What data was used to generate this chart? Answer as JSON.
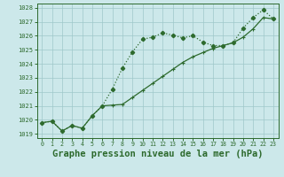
{
  "title": "Graphe pression niveau de la mer (hPa)",
  "xlim": [
    -0.5,
    23.5
  ],
  "ylim": [
    1018.7,
    1028.3
  ],
  "yticks": [
    1019,
    1020,
    1021,
    1022,
    1023,
    1024,
    1025,
    1026,
    1027,
    1028
  ],
  "xticks": [
    0,
    1,
    2,
    3,
    4,
    5,
    6,
    7,
    8,
    9,
    10,
    11,
    12,
    13,
    14,
    15,
    16,
    17,
    18,
    19,
    20,
    21,
    22,
    23
  ],
  "series1_x": [
    0,
    1,
    2,
    3,
    4,
    5,
    6,
    7,
    8,
    9,
    10,
    11,
    12,
    13,
    14,
    15,
    16,
    17,
    18,
    19,
    20,
    21,
    22,
    23
  ],
  "series1_y": [
    1019.8,
    1019.9,
    1019.2,
    1019.6,
    1019.4,
    1020.3,
    1021.0,
    1021.05,
    1021.1,
    1021.6,
    1022.1,
    1022.6,
    1023.1,
    1023.6,
    1024.1,
    1024.5,
    1024.8,
    1025.1,
    1025.3,
    1025.5,
    1025.9,
    1026.5,
    1027.3,
    1027.2
  ],
  "series2_x": [
    0,
    1,
    2,
    3,
    4,
    5,
    6,
    7,
    8,
    9,
    10,
    11,
    12,
    13,
    14,
    15,
    16,
    17,
    18,
    19,
    20,
    21,
    22,
    23
  ],
  "series2_y": [
    1019.8,
    1019.9,
    1019.2,
    1019.6,
    1019.4,
    1020.3,
    1021.0,
    1022.2,
    1023.7,
    1024.85,
    1025.75,
    1025.9,
    1026.2,
    1026.05,
    1025.85,
    1026.0,
    1025.55,
    1025.3,
    1025.3,
    1025.5,
    1026.55,
    1027.3,
    1027.85,
    1027.2
  ],
  "line_color": "#2d6a2d",
  "bg_color": "#cce8ea",
  "grid_color": "#9fc8ca",
  "title_fontsize": 7.5
}
